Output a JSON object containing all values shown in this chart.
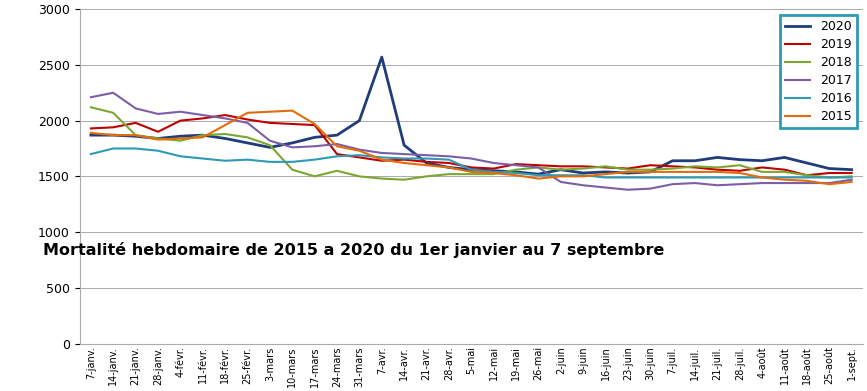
{
  "title": "Mortalité hebdomaire de 2015 a 2020 du 1er janvier au 7 septembre",
  "x_labels": [
    "7-janv.",
    "14-janv.",
    "21-janv.",
    "28-janv.",
    "4-févr.",
    "11-févr.",
    "18-févr.",
    "25-févr.",
    "3-mars",
    "10-mars",
    "17-mars",
    "24-mars",
    "31-mars",
    "7-avr.",
    "14-avr.",
    "21-avr.",
    "28-avr.",
    "5-mai",
    "12-mai",
    "19-mai",
    "26-mai",
    "2-juin",
    "9-juin",
    "16-juin",
    "23-juin",
    "30-juin",
    "7-juil.",
    "14-juil.",
    "21-juil.",
    "28-juil.",
    "4-août",
    "11-août",
    "18-août",
    "25-août",
    "1-sept."
  ],
  "series": {
    "2020": [
      1870,
      1870,
      1860,
      1840,
      1860,
      1870,
      1840,
      1800,
      1760,
      1800,
      1850,
      1870,
      2000,
      2570,
      1780,
      1620,
      1580,
      1560,
      1550,
      1540,
      1520,
      1560,
      1530,
      1540,
      1530,
      1540,
      1640,
      1640,
      1670,
      1650,
      1640,
      1670,
      1620,
      1570,
      1560
    ],
    "2019": [
      1930,
      1940,
      1980,
      1900,
      2000,
      2020,
      2050,
      2010,
      1980,
      1970,
      1960,
      1700,
      1670,
      1640,
      1650,
      1630,
      1620,
      1580,
      1570,
      1610,
      1600,
      1590,
      1590,
      1580,
      1570,
      1600,
      1590,
      1580,
      1560,
      1550,
      1580,
      1560,
      1510,
      1530,
      1530
    ],
    "2018": [
      2120,
      2070,
      1870,
      1840,
      1820,
      1870,
      1880,
      1850,
      1780,
      1560,
      1500,
      1550,
      1500,
      1480,
      1470,
      1500,
      1520,
      1520,
      1520,
      1560,
      1580,
      1560,
      1570,
      1590,
      1560,
      1560,
      1570,
      1590,
      1580,
      1600,
      1540,
      1540,
      1510,
      1490,
      1500
    ],
    "2017": [
      2210,
      2250,
      2110,
      2060,
      2080,
      2050,
      2020,
      1980,
      1820,
      1760,
      1770,
      1790,
      1740,
      1710,
      1700,
      1690,
      1680,
      1660,
      1620,
      1600,
      1580,
      1450,
      1420,
      1400,
      1380,
      1390,
      1430,
      1440,
      1420,
      1430,
      1440,
      1440,
      1440,
      1440,
      1470
    ],
    "2016": [
      1700,
      1750,
      1750,
      1730,
      1680,
      1660,
      1640,
      1650,
      1630,
      1630,
      1650,
      1680,
      1690,
      1670,
      1660,
      1660,
      1650,
      1560,
      1540,
      1530,
      1510,
      1510,
      1510,
      1490,
      1490,
      1490,
      1490,
      1490,
      1490,
      1490,
      1490,
      1490,
      1490,
      1490,
      1490
    ],
    "2015": [
      1890,
      1870,
      1870,
      1830,
      1840,
      1850,
      1960,
      2070,
      2080,
      2090,
      1970,
      1770,
      1730,
      1650,
      1620,
      1600,
      1580,
      1540,
      1530,
      1510,
      1480,
      1500,
      1500,
      1520,
      1540,
      1540,
      1540,
      1540,
      1540,
      1530,
      1490,
      1470,
      1460,
      1430,
      1450
    ]
  },
  "colors": {
    "2020": "#1F3D7A",
    "2019": "#C00000",
    "2018": "#7CA632",
    "2017": "#7B5EA7",
    "2016": "#2E9AB5",
    "2015": "#E36C0A"
  },
  "ylim": [
    0,
    3000
  ],
  "yticks": [
    0,
    500,
    1000,
    1500,
    2000,
    2500,
    3000
  ],
  "background_color": "#FFFFFF",
  "legend_border_color": "#2E9AB5"
}
